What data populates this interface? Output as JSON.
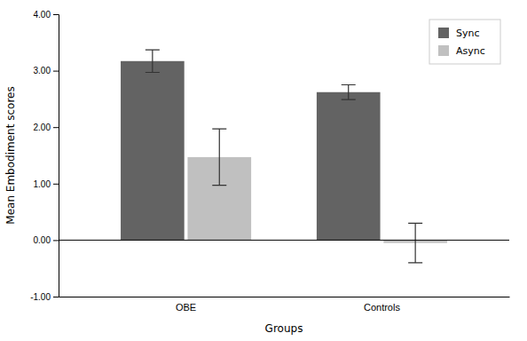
{
  "chart_data": {
    "type": "bar",
    "categories": [
      "OBE",
      "Controls"
    ],
    "series": [
      {
        "name": "Sync",
        "color": "#636363",
        "values": [
          3.17,
          2.62
        ],
        "errors": [
          0.2,
          0.13
        ]
      },
      {
        "name": "Async",
        "color": "#c0c0c0",
        "values": [
          1.47,
          -0.05
        ],
        "errors": [
          0.5,
          0.35
        ]
      }
    ],
    "xlabel": "Groups",
    "ylabel": "Mean Embodiment scores",
    "ylim": [
      -1.0,
      4.0
    ],
    "yticks": [
      {
        "value": -1.0,
        "label": "-1.00"
      },
      {
        "value": 0.0,
        "label": "0.00"
      },
      {
        "value": 1.0,
        "label": "1.00"
      },
      {
        "value": 2.0,
        "label": "2.00"
      },
      {
        "value": 3.0,
        "label": "3.00"
      },
      {
        "value": 4.0,
        "label": "4.00"
      }
    ],
    "grid": false,
    "legend": "upper right"
  }
}
